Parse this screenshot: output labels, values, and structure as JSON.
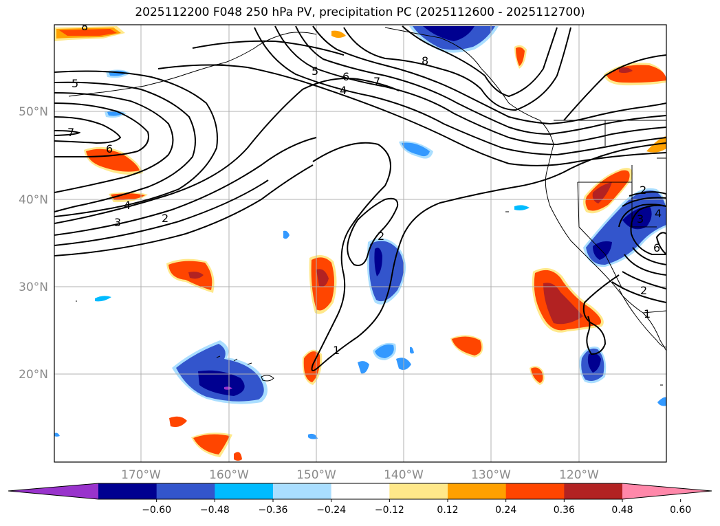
{
  "title": "2025112200 F048 250 hPa PV, precipitation PC (2025112600 - 2025112700)",
  "lat_labels": [
    {
      "text": "50°N",
      "value": 50
    },
    {
      "text": "40°N",
      "value": 40
    },
    {
      "text": "30°N",
      "value": 30
    },
    {
      "text": "20°N",
      "value": 20
    }
  ],
  "lon_labels": [
    {
      "text": "170°W",
      "value": -170
    },
    {
      "text": "160°W",
      "value": -160
    },
    {
      "text": "150°W",
      "value": -150
    },
    {
      "text": "140°W",
      "value": -140
    },
    {
      "text": "130°W",
      "value": -130
    },
    {
      "text": "120°W",
      "value": -120
    }
  ],
  "contour_labels": [
    "8",
    "5",
    "6",
    "7",
    "4",
    "5",
    "7",
    "6",
    "8",
    "4",
    "3",
    "2",
    "2",
    "1",
    "2",
    "3",
    "4",
    "6",
    "2",
    "1"
  ],
  "colorbar": {
    "ticks": [
      "−0.60",
      "−0.48",
      "−0.36",
      "−0.24",
      "−0.12",
      "0.12",
      "0.24",
      "0.36",
      "0.48",
      "0.60"
    ],
    "colors": [
      "#9933cc",
      "#000090",
      "#3355cc",
      "#00bbff",
      "#aadeff",
      "#ffffff",
      "#ffe88a",
      "#ffa000",
      "#ff4500",
      "#b22222",
      "#ff88aa"
    ]
  }
}
